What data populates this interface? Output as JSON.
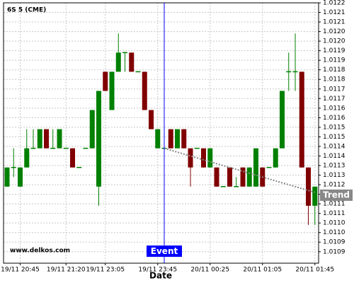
{
  "chart_data": {
    "type": "candlestick",
    "title": "6S 5 (CME)",
    "watermark": "www.delkos.com",
    "x_label": "Date",
    "categories": [
      null,
      null,
      "19/11 20:45",
      null,
      null,
      null,
      null,
      null,
      null,
      "19/11 21:20",
      null,
      null,
      null,
      null,
      null,
      "19/11 23:05",
      null,
      null,
      null,
      null,
      null,
      null,
      null,
      "19/11 23:45",
      null,
      null,
      null,
      null,
      null,
      null,
      null,
      "20/11 00:25",
      null,
      null,
      null,
      null,
      null,
      null,
      null,
      "20/11 01:05",
      null,
      null,
      null,
      null,
      null,
      null,
      null,
      "20/11 01:45"
    ],
    "open": [
      1.0112,
      1.0113,
      1.0112,
      1.0113,
      1.0114,
      1.0114,
      1.0115,
      1.0114,
      1.0114,
      1.0114,
      1.0114,
      1.0113,
      1.0114,
      1.0114,
      1.0112,
      1.0118,
      1.0116,
      1.0118,
      1.0119,
      1.0119,
      1.0118,
      1.0118,
      1.0116,
      1.0114,
      1.0114,
      1.0115,
      1.0114,
      1.0115,
      1.0114,
      1.0114,
      1.0114,
      1.0113,
      1.0113,
      1.0112,
      1.0113,
      1.0112,
      1.0113,
      1.0112,
      1.0112,
      1.0113,
      1.0113,
      1.0113,
      1.0114,
      1.0118,
      1.0118,
      1.0118,
      1.0113,
      1.0111
    ],
    "high": [
      1.0113,
      1.0114,
      1.0113,
      1.0115,
      1.0115,
      1.0115,
      1.0115,
      1.0115,
      1.0115,
      1.0114,
      1.0114,
      1.0113,
      1.0114,
      1.0116,
      1.0117,
      1.0118,
      1.0118,
      1.012,
      1.0119,
      1.0119,
      1.0118,
      1.0118,
      1.0116,
      1.0115,
      1.0114,
      1.0115,
      1.0115,
      1.0115,
      1.0114,
      1.0114,
      1.0114,
      1.0114,
      1.0113,
      1.0112,
      1.0113,
      1.01125,
      1.0113,
      1.0113,
      1.0114,
      1.0113,
      1.0113,
      1.0114,
      1.0117,
      1.0119,
      1.012,
      1.0118,
      1.0113,
      1.0112
    ],
    "low": [
      1.0112,
      1.01125,
      1.0112,
      1.0113,
      1.0114,
      1.0114,
      1.0114,
      1.0114,
      1.0114,
      1.0114,
      1.0113,
      1.0113,
      1.0114,
      1.0114,
      1.0111,
      1.0117,
      1.0116,
      1.0118,
      1.0118,
      1.0118,
      1.0118,
      1.0116,
      1.0115,
      1.0114,
      1.0114,
      1.0114,
      1.0114,
      1.0114,
      1.0112,
      1.0114,
      1.0113,
      1.0113,
      1.0112,
      1.0112,
      1.0112,
      1.0112,
      1.0112,
      1.0112,
      1.0112,
      1.0112,
      1.0113,
      1.0113,
      1.0114,
      1.0117,
      1.0117,
      1.0113,
      1.011,
      1.011
    ],
    "close": [
      1.0113,
      1.0113,
      1.0113,
      1.0114,
      1.0114,
      1.0115,
      1.0114,
      1.0114,
      1.0115,
      1.0114,
      1.0113,
      1.0113,
      1.0114,
      1.0116,
      1.0117,
      1.0117,
      1.0118,
      1.0119,
      1.0119,
      1.0118,
      1.0118,
      1.0116,
      1.0115,
      1.0115,
      1.0114,
      1.0114,
      1.0115,
      1.0114,
      1.0113,
      1.0114,
      1.0113,
      1.0114,
      1.0112,
      1.0112,
      1.0112,
      1.0112,
      1.0112,
      1.0113,
      1.0114,
      1.0112,
      1.0113,
      1.0114,
      1.0117,
      1.0118,
      1.0118,
      1.0113,
      1.0111,
      1.0112
    ],
    "up_color": "#008000",
    "down_color": "#800000",
    "ylim": [
      1.0108,
      1.01216
    ],
    "yticks": [
      {
        "value": 1.01216,
        "label": "1.0122"
      },
      {
        "value": 1.01211,
        "label": "1.0121"
      },
      {
        "value": 1.01206,
        "label": "1.0121"
      },
      {
        "value": 1.01201,
        "label": "1.0120"
      },
      {
        "value": 1.01196,
        "label": "1.0120"
      },
      {
        "value": 1.01191,
        "label": "1.0119"
      },
      {
        "value": 1.01186,
        "label": "1.0119"
      },
      {
        "value": 1.01181,
        "label": "1.0118"
      },
      {
        "value": 1.01176,
        "label": "1.0118"
      },
      {
        "value": 1.01171,
        "label": "1.0117"
      },
      {
        "value": 1.01166,
        "label": "1.0117"
      },
      {
        "value": 1.01161,
        "label": "1.0116"
      },
      {
        "value": 1.01156,
        "label": "1.0116"
      },
      {
        "value": 1.01151,
        "label": "1.0115"
      },
      {
        "value": 1.01146,
        "label": "1.0115"
      },
      {
        "value": 1.01141,
        "label": "1.0114"
      },
      {
        "value": 1.01136,
        "label": "1.0114"
      },
      {
        "value": 1.01131,
        "label": "1.0113"
      },
      {
        "value": 1.01126,
        "label": "1.0113"
      },
      {
        "value": 1.01121,
        "label": "1.0112"
      },
      {
        "value": 1.01116,
        "label": "1.0112"
      },
      {
        "value": 1.01111,
        "label": "1.0111"
      },
      {
        "value": 1.01106,
        "label": "1.0111"
      },
      {
        "value": 1.01101,
        "label": "1.0110"
      },
      {
        "value": 1.01096,
        "label": "1.0110"
      },
      {
        "value": 1.01091,
        "label": "1.0109"
      },
      {
        "value": 1.01086,
        "label": "1.0109"
      }
    ],
    "grid": true,
    "event": {
      "label": "Event",
      "index": 24,
      "color": "#0000ff"
    },
    "trend": {
      "label": "Trend",
      "from": {
        "index": 24,
        "value": 1.0114
      },
      "to": {
        "index": 47,
        "value": 1.01117
      },
      "color": "#888888"
    }
  }
}
